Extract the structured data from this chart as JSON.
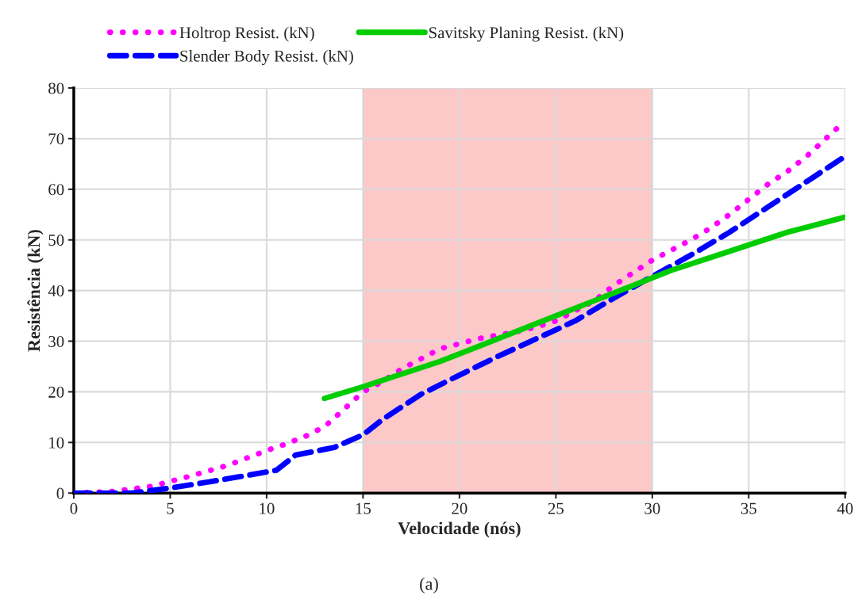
{
  "chart_data": {
    "type": "line",
    "xlabel": "Velocidade (nós)",
    "ylabel": "Resistência (kN)",
    "xlim": [
      0,
      40
    ],
    "ylim": [
      0,
      80
    ],
    "xticks": [
      0,
      5,
      10,
      15,
      20,
      25,
      30,
      35,
      40
    ],
    "yticks": [
      0,
      10,
      20,
      30,
      40,
      50,
      60,
      70,
      80
    ],
    "grid": true,
    "legend": "top",
    "annotations": [
      "(a)"
    ],
    "bands": [
      {
        "axis": "x",
        "from": 15,
        "to": 30,
        "color": "#fcc8c8"
      }
    ],
    "series": [
      {
        "name": "Holtrop Resist. (kN)",
        "color": "#ff00ff",
        "line_style": "dotted",
        "x": [
          0,
          2,
          4,
          5,
          6,
          8,
          10,
          11,
          12,
          13,
          14,
          15,
          16,
          17,
          18,
          19,
          20,
          21,
          22,
          23,
          24,
          25,
          26,
          27,
          28,
          29,
          30,
          31,
          32,
          33,
          34,
          35,
          36,
          37,
          38,
          39,
          40
        ],
        "values": [
          0,
          0.3,
          1.3,
          2.3,
          3.3,
          5.5,
          8.4,
          9.7,
          11.2,
          13.1,
          16.5,
          20,
          22,
          24.5,
          26.5,
          28.5,
          29.5,
          30.5,
          31.2,
          31.9,
          32.8,
          34,
          36,
          38,
          41,
          43.5,
          46,
          48,
          50,
          52.3,
          55,
          58,
          61,
          63.5,
          66.5,
          70,
          73.5
        ]
      },
      {
        "name": "Slender Body Resist. (kN)",
        "color": "#0000ff",
        "line_style": "dashed",
        "x": [
          0,
          3,
          5,
          7,
          9,
          10.5,
          11.5,
          13.5,
          15,
          16,
          18,
          20,
          22,
          24,
          26,
          28,
          30,
          32,
          34,
          36,
          38,
          40
        ],
        "values": [
          0,
          0,
          1,
          2.2,
          3.5,
          4.5,
          7.5,
          9,
          11.5,
          14.5,
          19.5,
          23.3,
          27,
          30.5,
          34,
          38.5,
          42.8,
          47,
          51.5,
          56.5,
          61.5,
          66.5
        ]
      },
      {
        "name": "Savitsky Planing Resist. (kN)",
        "color": "#00cc00",
        "line_style": "solid",
        "x": [
          13,
          15,
          17,
          19,
          21,
          23,
          25,
          27,
          29,
          31,
          33,
          35,
          37,
          40
        ],
        "values": [
          18.7,
          21,
          23.5,
          26,
          29,
          32,
          35,
          38,
          41,
          44,
          46.5,
          49,
          51.5,
          54.5
        ]
      }
    ]
  }
}
